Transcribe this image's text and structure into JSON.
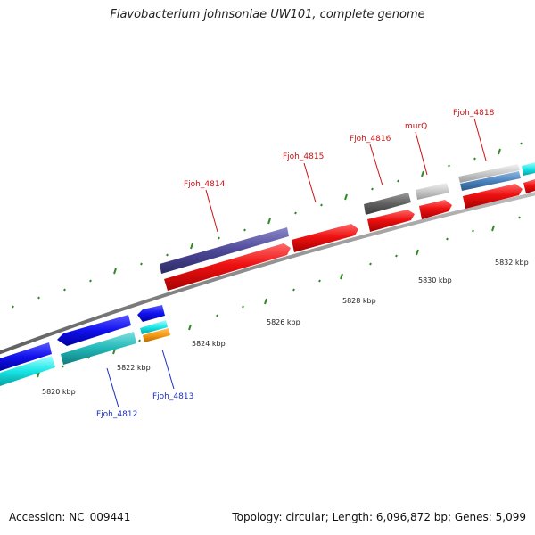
{
  "title": "Flavobacterium johnsoniae UW101, complete genome",
  "accession": "Accession: NC_009441",
  "summary": "Topology: circular; Length: 6,096,872 bp; Genes: 5,099",
  "colors": {
    "backbone": "#8c8c8c",
    "tick": "#2e8b22",
    "forward_label": "#cc1111",
    "reverse_label": "#1a2fc4"
  },
  "ticks": [
    {
      "label": "5820 kbp"
    },
    {
      "label": "5822 kbp"
    },
    {
      "label": "5824 kbp"
    },
    {
      "label": "5826 kbp"
    },
    {
      "label": "5828 kbp"
    },
    {
      "label": "5830 kbp"
    },
    {
      "label": "5832 kbp"
    }
  ],
  "gene_labels": [
    {
      "name": "Fjoh_4812",
      "strand": "reverse"
    },
    {
      "name": "Fjoh_4813",
      "strand": "reverse"
    },
    {
      "name": "Fjoh_4814",
      "strand": "forward"
    },
    {
      "name": "Fjoh_4815",
      "strand": "forward"
    },
    {
      "name": "Fjoh_4816",
      "strand": "forward"
    },
    {
      "name": "murQ",
      "strand": "forward"
    },
    {
      "name": "Fjoh_4818",
      "strand": "forward"
    }
  ]
}
